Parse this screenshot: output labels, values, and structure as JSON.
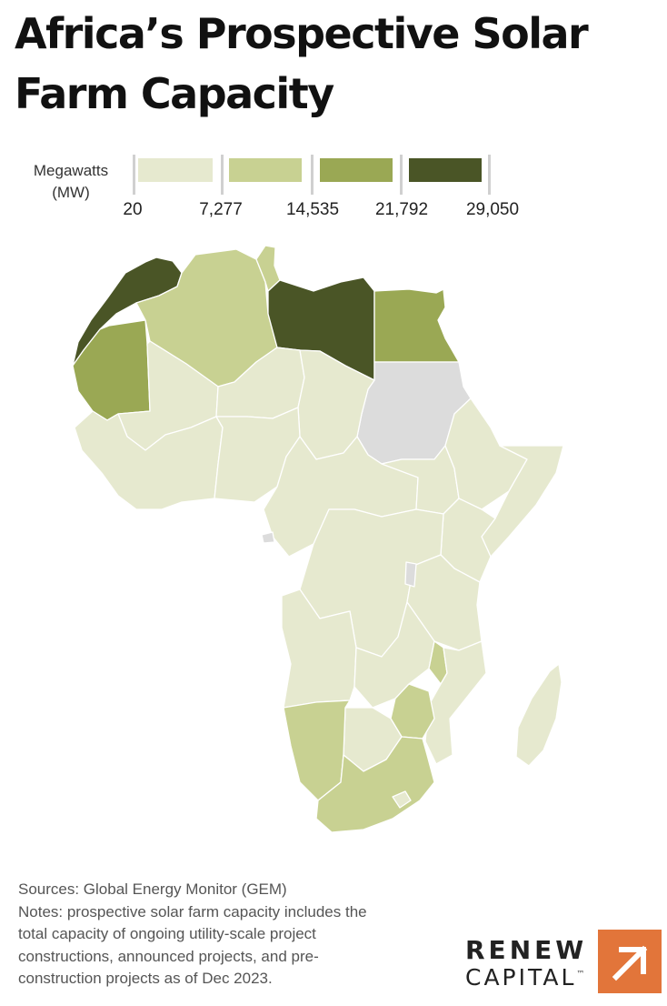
{
  "title": {
    "line1": "Africa’s Prospective Solar",
    "line2": "Farm Capacity"
  },
  "legend": {
    "label_line1": "Megawatts",
    "label_line2": "(MW)",
    "ticks": [
      "20",
      "7,277",
      "14,535",
      "21,792",
      "29,050"
    ],
    "bins": [
      {
        "min": 20,
        "max": 7277,
        "color": "#e6e9cf"
      },
      {
        "min": 7277,
        "max": 14535,
        "color": "#c8d192"
      },
      {
        "min": 14535,
        "max": 21792,
        "color": "#9aa854"
      },
      {
        "min": 21792,
        "max": 29050,
        "color": "#4a5526"
      }
    ],
    "no_data_color": "#dcdcdc"
  },
  "footer": {
    "sources": "Sources: Global Energy Monitor (GEM)",
    "notes_line1": "Notes: prospective solar farm capacity includes the",
    "notes_line2": "total capacity of ongoing utility-scale project",
    "notes_line3": "constructions, announced projects, and pre-",
    "notes_line4": "construction projects as of Dec 2023."
  },
  "brand": {
    "word1": "RENEW",
    "word2": "CAPITAL",
    "trademark": "™",
    "logo_color": "#e2753a"
  },
  "map": {
    "countries": [
      {
        "name": "Morocco / Western Sahara",
        "bin": 4
      },
      {
        "name": "Mauritania",
        "bin": 3
      },
      {
        "name": "Algeria",
        "bin": 2
      },
      {
        "name": "Tunisia",
        "bin": 2
      },
      {
        "name": "Libya",
        "bin": 4
      },
      {
        "name": "Egypt",
        "bin": 3
      },
      {
        "name": "Sudan",
        "bin": "no-data"
      },
      {
        "name": "Mali",
        "bin": 1
      },
      {
        "name": "Niger",
        "bin": 1
      },
      {
        "name": "Chad",
        "bin": 1
      },
      {
        "name": "West Africa coast",
        "bin": 1
      },
      {
        "name": "Nigeria",
        "bin": 1
      },
      {
        "name": "Cameroon / CAR",
        "bin": 1
      },
      {
        "name": "South Sudan",
        "bin": 1
      },
      {
        "name": "Ethiopia",
        "bin": 1
      },
      {
        "name": "Somalia",
        "bin": 1
      },
      {
        "name": "Kenya",
        "bin": 1
      },
      {
        "name": "DR Congo",
        "bin": 1
      },
      {
        "name": "Tanzania",
        "bin": 1
      },
      {
        "name": "Angola",
        "bin": 1
      },
      {
        "name": "Zambia",
        "bin": 1
      },
      {
        "name": "Malawi",
        "bin": 2
      },
      {
        "name": "Mozambique",
        "bin": 1
      },
      {
        "name": "Zimbabwe",
        "bin": 2
      },
      {
        "name": "Botswana",
        "bin": 1
      },
      {
        "name": "Namibia",
        "bin": 2
      },
      {
        "name": "South Africa",
        "bin": 2
      },
      {
        "name": "Madagascar",
        "bin": 1
      },
      {
        "name": "Equatorial Guinea",
        "bin": "no-data"
      },
      {
        "name": "Rwanda / Burundi",
        "bin": "no-data"
      }
    ]
  }
}
